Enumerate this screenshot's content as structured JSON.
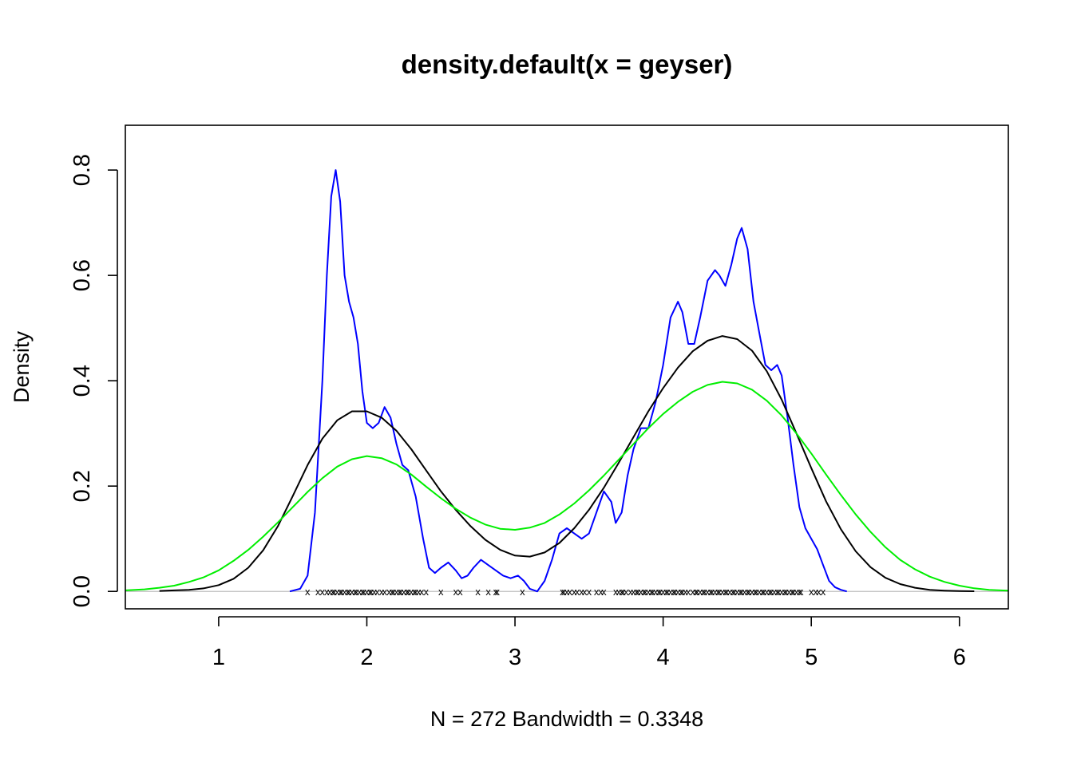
{
  "chart_data": {
    "type": "line",
    "title": "density.default(x = geyser)",
    "xlabel": "N = 272   Bandwidth = 0.3348",
    "ylabel": "Density",
    "xlim": [
      0.37,
      6.33
    ],
    "ylim": [
      -0.033,
      0.885
    ],
    "x_ticks": [
      "1",
      "2",
      "3",
      "4",
      "5",
      "6"
    ],
    "y_ticks": [
      "0.0",
      "0.2",
      "0.4",
      "0.6",
      "0.8"
    ],
    "colors": {
      "narrow_bandwidth": "#0000ff",
      "default_bandwidth": "#000000",
      "wide_bandwidth": "#00ee00",
      "baseline": "#bebebe"
    },
    "series": [
      {
        "color": "#0000ff",
        "x": [
          1.48,
          1.55,
          1.6,
          1.65,
          1.7,
          1.73,
          1.76,
          1.79,
          1.82,
          1.85,
          1.88,
          1.91,
          1.94,
          1.97,
          2.0,
          2.04,
          2.08,
          2.12,
          2.16,
          2.2,
          2.24,
          2.28,
          2.33,
          2.38,
          2.42,
          2.46,
          2.5,
          2.55,
          2.6,
          2.64,
          2.68,
          2.72,
          2.77,
          2.82,
          2.87,
          2.92,
          2.97,
          3.02,
          3.06,
          3.1,
          3.15,
          3.2,
          3.25,
          3.3,
          3.35,
          3.4,
          3.45,
          3.5,
          3.55,
          3.6,
          3.65,
          3.68,
          3.72,
          3.76,
          3.8,
          3.85,
          3.9,
          3.95,
          4.0,
          4.05,
          4.1,
          4.13,
          4.17,
          4.21,
          4.25,
          4.3,
          4.35,
          4.38,
          4.42,
          4.46,
          4.5,
          4.53,
          4.57,
          4.61,
          4.65,
          4.69,
          4.73,
          4.77,
          4.8,
          4.84,
          4.88,
          4.92,
          4.96,
          5.0,
          5.04,
          5.08,
          5.12,
          5.16,
          5.2,
          5.24
        ],
        "y": [
          0.0,
          0.005,
          0.03,
          0.15,
          0.4,
          0.6,
          0.75,
          0.8,
          0.74,
          0.6,
          0.55,
          0.52,
          0.47,
          0.38,
          0.32,
          0.31,
          0.32,
          0.35,
          0.33,
          0.28,
          0.24,
          0.23,
          0.18,
          0.1,
          0.045,
          0.035,
          0.045,
          0.055,
          0.04,
          0.025,
          0.03,
          0.045,
          0.06,
          0.05,
          0.04,
          0.03,
          0.025,
          0.03,
          0.02,
          0.005,
          0.0,
          0.02,
          0.06,
          0.11,
          0.12,
          0.11,
          0.1,
          0.11,
          0.15,
          0.19,
          0.17,
          0.13,
          0.15,
          0.22,
          0.27,
          0.31,
          0.31,
          0.36,
          0.43,
          0.52,
          0.55,
          0.53,
          0.47,
          0.47,
          0.52,
          0.59,
          0.61,
          0.6,
          0.58,
          0.62,
          0.67,
          0.69,
          0.65,
          0.55,
          0.49,
          0.43,
          0.42,
          0.43,
          0.41,
          0.33,
          0.24,
          0.16,
          0.12,
          0.1,
          0.08,
          0.05,
          0.02,
          0.008,
          0.003,
          0.0
        ]
      },
      {
        "color": "#000000",
        "x": [
          0.6,
          0.7,
          0.8,
          0.9,
          1.0,
          1.1,
          1.2,
          1.3,
          1.4,
          1.5,
          1.6,
          1.7,
          1.8,
          1.9,
          2.0,
          2.1,
          2.2,
          2.3,
          2.4,
          2.5,
          2.6,
          2.7,
          2.8,
          2.9,
          3.0,
          3.1,
          3.2,
          3.3,
          3.4,
          3.5,
          3.6,
          3.7,
          3.8,
          3.9,
          4.0,
          4.1,
          4.2,
          4.3,
          4.4,
          4.5,
          4.6,
          4.7,
          4.8,
          4.9,
          5.0,
          5.1,
          5.2,
          5.3,
          5.4,
          5.5,
          5.6,
          5.7,
          5.8,
          5.9,
          6.0,
          6.1
        ],
        "y": [
          0.001,
          0.002,
          0.003,
          0.006,
          0.012,
          0.024,
          0.045,
          0.078,
          0.124,
          0.181,
          0.24,
          0.29,
          0.325,
          0.342,
          0.342,
          0.33,
          0.305,
          0.27,
          0.23,
          0.19,
          0.155,
          0.124,
          0.098,
          0.079,
          0.068,
          0.066,
          0.074,
          0.092,
          0.12,
          0.155,
          0.197,
          0.244,
          0.293,
          0.342,
          0.386,
          0.425,
          0.456,
          0.476,
          0.485,
          0.479,
          0.457,
          0.418,
          0.364,
          0.3,
          0.234,
          0.171,
          0.118,
          0.076,
          0.046,
          0.026,
          0.014,
          0.007,
          0.003,
          0.0015,
          0.0007,
          0.0003
        ]
      },
      {
        "color": "#00ee00",
        "x": [
          0.37,
          0.5,
          0.6,
          0.7,
          0.8,
          0.9,
          1.0,
          1.1,
          1.2,
          1.3,
          1.4,
          1.5,
          1.6,
          1.7,
          1.8,
          1.9,
          2.0,
          2.1,
          2.2,
          2.3,
          2.4,
          2.5,
          2.6,
          2.7,
          2.8,
          2.9,
          3.0,
          3.1,
          3.2,
          3.3,
          3.4,
          3.5,
          3.6,
          3.7,
          3.8,
          3.9,
          4.0,
          4.1,
          4.2,
          4.3,
          4.4,
          4.5,
          4.6,
          4.7,
          4.8,
          4.9,
          5.0,
          5.1,
          5.2,
          5.3,
          5.4,
          5.5,
          5.6,
          5.7,
          5.8,
          5.9,
          6.0,
          6.1,
          6.2,
          6.33
        ],
        "y": [
          0.002,
          0.004,
          0.007,
          0.011,
          0.018,
          0.027,
          0.04,
          0.058,
          0.079,
          0.104,
          0.131,
          0.16,
          0.189,
          0.215,
          0.237,
          0.251,
          0.257,
          0.253,
          0.241,
          0.222,
          0.199,
          0.177,
          0.157,
          0.14,
          0.127,
          0.119,
          0.117,
          0.121,
          0.13,
          0.146,
          0.167,
          0.192,
          0.22,
          0.25,
          0.28,
          0.31,
          0.337,
          0.36,
          0.379,
          0.392,
          0.398,
          0.395,
          0.383,
          0.362,
          0.334,
          0.3,
          0.262,
          0.222,
          0.183,
          0.146,
          0.113,
          0.084,
          0.06,
          0.042,
          0.028,
          0.018,
          0.011,
          0.006,
          0.003,
          0.0015
        ]
      }
    ],
    "rug": [
      1.6,
      1.67,
      1.7,
      1.73,
      1.75,
      1.77,
      1.78,
      1.8,
      1.82,
      1.83,
      1.85,
      1.87,
      1.88,
      1.9,
      1.92,
      1.93,
      1.95,
      1.97,
      1.98,
      2.0,
      2.02,
      2.03,
      2.05,
      2.07,
      2.1,
      2.12,
      2.15,
      2.17,
      2.18,
      2.2,
      2.22,
      2.23,
      2.25,
      2.27,
      2.28,
      2.3,
      2.32,
      2.33,
      2.35,
      2.37,
      2.4,
      2.5,
      2.6,
      2.63,
      2.75,
      2.82,
      2.87,
      2.88,
      3.05,
      3.32,
      3.33,
      3.35,
      3.37,
      3.4,
      3.42,
      3.45,
      3.47,
      3.5,
      3.55,
      3.58,
      3.6,
      3.68,
      3.7,
      3.72,
      3.73,
      3.75,
      3.78,
      3.8,
      3.82,
      3.83,
      3.85,
      3.87,
      3.88,
      3.9,
      3.92,
      3.93,
      3.95,
      3.97,
      3.98,
      4.0,
      4.02,
      4.03,
      4.05,
      4.07,
      4.08,
      4.1,
      4.12,
      4.13,
      4.15,
      4.17,
      4.2,
      4.22,
      4.23,
      4.25,
      4.27,
      4.28,
      4.3,
      4.32,
      4.33,
      4.35,
      4.37,
      4.38,
      4.4,
      4.42,
      4.43,
      4.45,
      4.47,
      4.48,
      4.5,
      4.52,
      4.53,
      4.55,
      4.57,
      4.58,
      4.6,
      4.62,
      4.63,
      4.65,
      4.67,
      4.68,
      4.7,
      4.72,
      4.73,
      4.75,
      4.77,
      4.78,
      4.8,
      4.82,
      4.83,
      4.85,
      4.87,
      4.88,
      4.9,
      4.92,
      4.93,
      5.0,
      5.03,
      5.05,
      5.08
    ]
  }
}
